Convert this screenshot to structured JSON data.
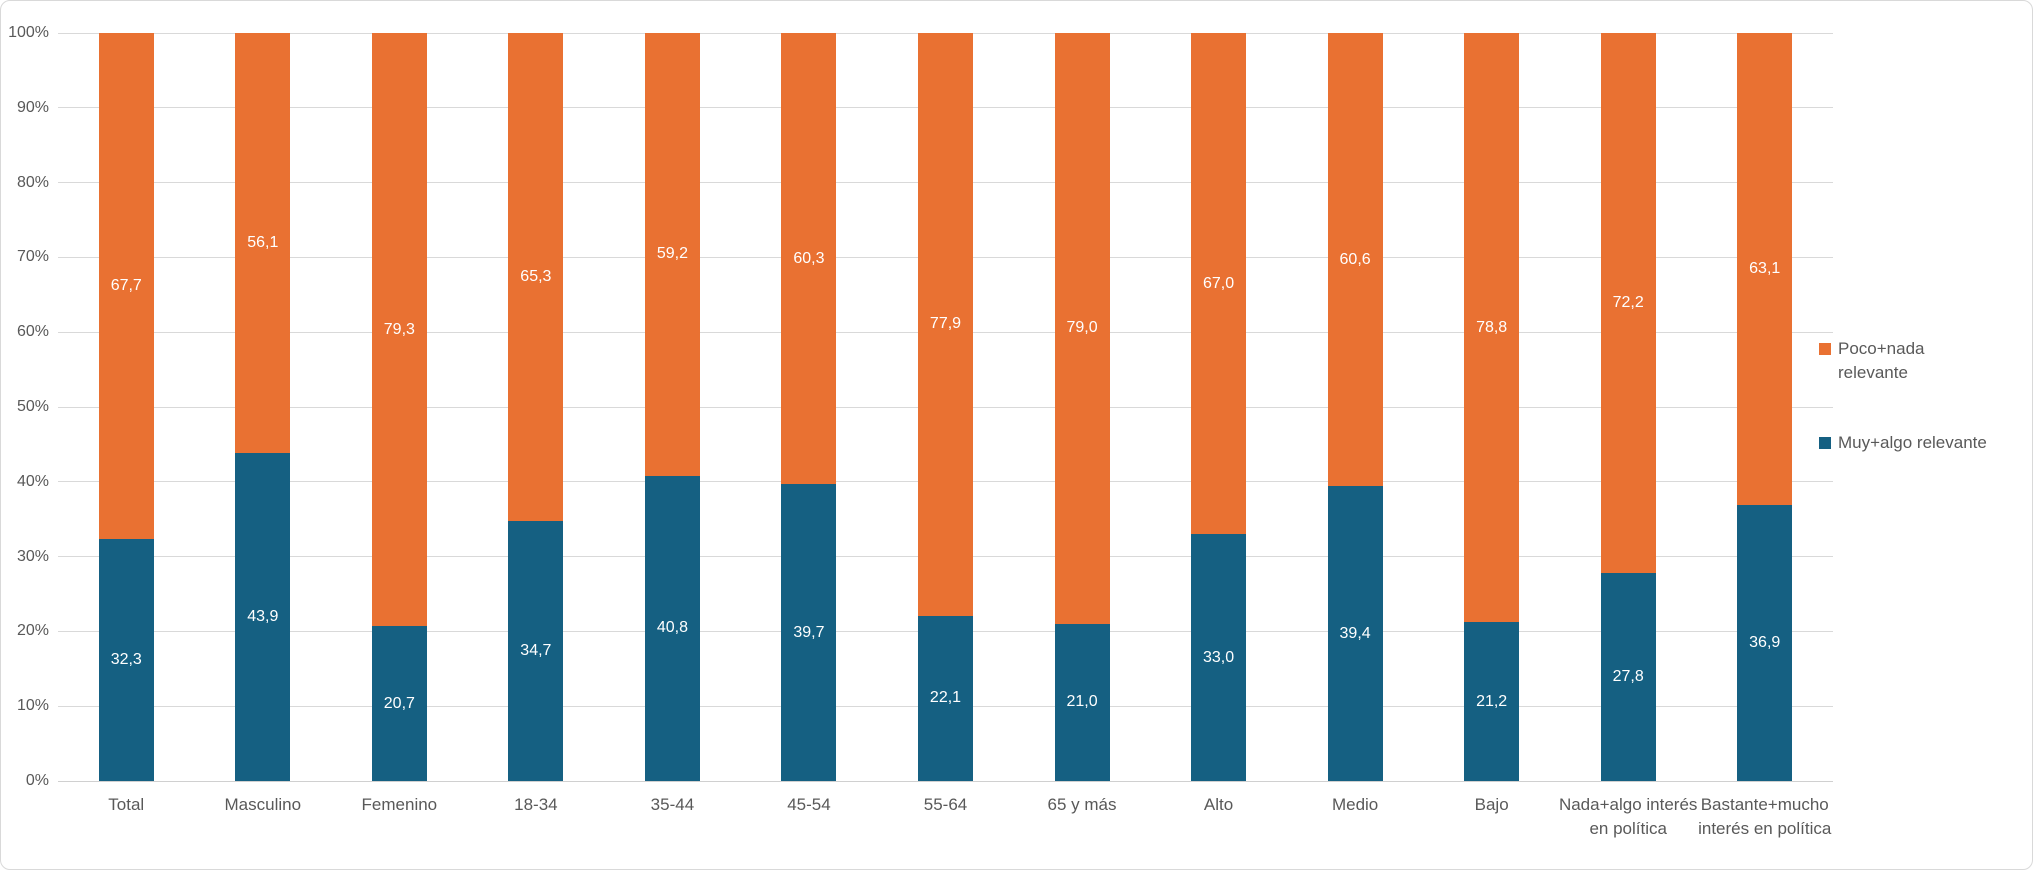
{
  "chart_data": {
    "type": "bar",
    "subtype": "percent-stacked-column",
    "title": "",
    "xlabel": "",
    "ylabel": "",
    "grid": true,
    "categories": [
      "Total",
      "Masculino",
      "Femenino",
      "18-34",
      "35-44",
      "45-54",
      "55-64",
      "65 y más",
      "Alto",
      "Medio",
      "Bajo",
      "Nada+algo interés\nen política",
      "Bastante+mucho\ninterés en política"
    ],
    "series": [
      {
        "name": "Muy+algo relevante",
        "color": "#156082",
        "values": [
          32.3,
          43.9,
          20.7,
          34.7,
          40.8,
          39.7,
          22.1,
          21.0,
          33.0,
          39.4,
          21.2,
          27.8,
          36.9
        ]
      },
      {
        "name": "Poco+nada relevante",
        "color": "#E97132",
        "values": [
          67.7,
          56.1,
          79.3,
          65.3,
          59.2,
          60.3,
          77.9,
          79.0,
          67.0,
          60.6,
          78.8,
          72.2,
          63.1
        ]
      }
    ],
    "data_label_decimal_separator": ",",
    "data_label_decimals": 1,
    "y_axis": {
      "min": 0,
      "max": 100,
      "step": 10,
      "ticks": [
        "0%",
        "10%",
        "20%",
        "30%",
        "40%",
        "50%",
        "60%",
        "70%",
        "80%",
        "90%",
        "100%"
      ]
    },
    "legend": {
      "position": "right",
      "entries": [
        {
          "label": "Poco+nada\nrelevante",
          "color": "#E97132"
        },
        {
          "label": "Muy+algo relevante",
          "color": "#156082"
        }
      ]
    }
  },
  "colors": {
    "background": "#FFFFFF",
    "frame_border": "#D9D9D9",
    "gridline": "#D9D9D9",
    "axis_text": "#595959",
    "data_label_text": "#FFFFFF"
  }
}
